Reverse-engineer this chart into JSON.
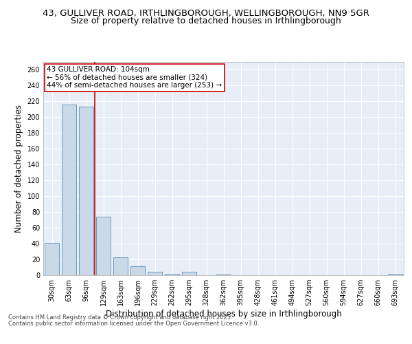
{
  "title_line1": "43, GULLIVER ROAD, IRTHLINGBOROUGH, WELLINGBOROUGH, NN9 5GR",
  "title_line2": "Size of property relative to detached houses in Irthlingborough",
  "xlabel": "Distribution of detached houses by size in Irthlingborough",
  "ylabel": "Number of detached properties",
  "footer_line1": "Contains HM Land Registry data © Crown copyright and database right 2025.",
  "footer_line2": "Contains public sector information licensed under the Open Government Licence v3.0.",
  "categories": [
    "30sqm",
    "63sqm",
    "96sqm",
    "129sqm",
    "163sqm",
    "196sqm",
    "229sqm",
    "262sqm",
    "295sqm",
    "328sqm",
    "362sqm",
    "395sqm",
    "428sqm",
    "461sqm",
    "494sqm",
    "527sqm",
    "560sqm",
    "594sqm",
    "627sqm",
    "660sqm",
    "693sqm"
  ],
  "values": [
    41,
    216,
    213,
    74,
    23,
    11,
    4,
    2,
    4,
    0,
    1,
    0,
    0,
    0,
    0,
    0,
    0,
    0,
    0,
    0,
    2
  ],
  "bar_color": "#c9d9e8",
  "bar_edge_color": "#5b8db8",
  "red_line_x": 2.5,
  "annotation_text": "43 GULLIVER ROAD: 104sqm\n← 56% of detached houses are smaller (324)\n44% of semi-detached houses are larger (253) →",
  "annotation_box_color": "#ffffff",
  "annotation_box_edge": "#cc0000",
  "red_line_color": "#cc0000",
  "ylim": [
    0,
    270
  ],
  "yticks": [
    0,
    20,
    40,
    60,
    80,
    100,
    120,
    140,
    160,
    180,
    200,
    220,
    240,
    260
  ],
  "background_color": "#e8eef8",
  "grid_color": "#ffffff",
  "title_fontsize": 9.5,
  "subtitle_fontsize": 9,
  "axis_label_fontsize": 8.5,
  "tick_fontsize": 7,
  "footer_fontsize": 6,
  "annotation_fontsize": 7.5
}
